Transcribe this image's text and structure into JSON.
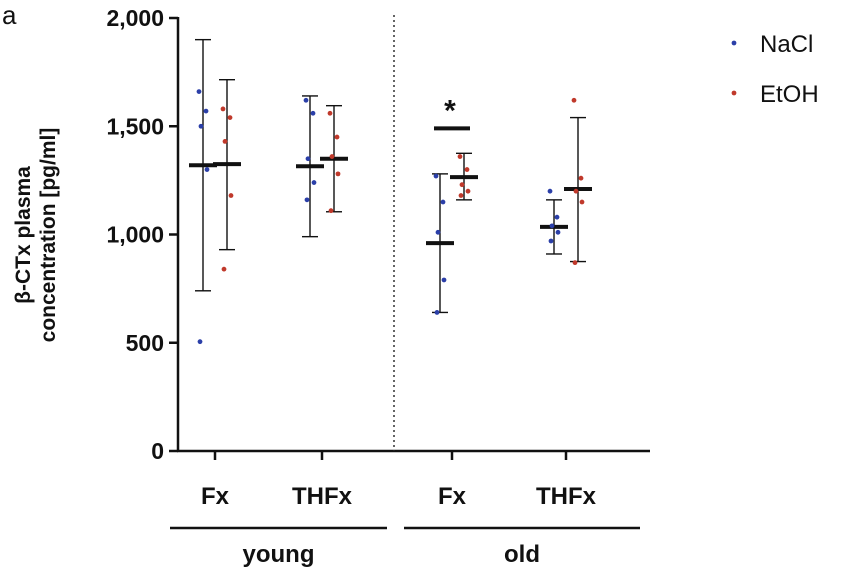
{
  "panel_letter": "a",
  "chart_data": {
    "type": "scatter",
    "ylabel_lines": [
      "β-CTx plasma",
      "concentration [pg/ml]"
    ],
    "ylim": [
      0,
      2000
    ],
    "yticks": [
      0,
      500,
      1000,
      1500,
      2000
    ],
    "ytick_labels": [
      "0",
      "500",
      "1,000",
      "1,500",
      "2,000"
    ],
    "grid": false,
    "legend_position": "top-right",
    "legend": [
      {
        "name": "NaCl",
        "color": "#2b3fa8"
      },
      {
        "name": "EtOH",
        "color": "#c0392b"
      }
    ],
    "categories": [
      "Fx",
      "THFx",
      "Fx",
      "THFx"
    ],
    "groups": [
      {
        "label": "young",
        "categories": [
          0,
          1
        ]
      },
      {
        "label": "old",
        "categories": [
          2,
          3
        ]
      }
    ],
    "series": [
      {
        "name": "NaCl",
        "color": "#2b3fa8",
        "data": [
          {
            "category": 0,
            "mean": 1320,
            "err_low": 740,
            "err_high": 1900,
            "points": [
              1660,
              1570,
              1500,
              1300,
              505
            ]
          },
          {
            "category": 1,
            "mean": 1315,
            "err_low": 990,
            "err_high": 1640,
            "points": [
              1620,
              1560,
              1350,
              1240,
              1160
            ]
          },
          {
            "category": 2,
            "mean": 960,
            "err_low": 640,
            "err_high": 1280,
            "points": [
              1270,
              1150,
              1010,
              790,
              640
            ]
          },
          {
            "category": 3,
            "mean": 1035,
            "err_low": 910,
            "err_high": 1160,
            "points": [
              1200,
              1080,
              1040,
              1010,
              970
            ]
          }
        ]
      },
      {
        "name": "EtOH",
        "color": "#c0392b",
        "data": [
          {
            "category": 0,
            "mean": 1325,
            "err_low": 930,
            "err_high": 1715,
            "points": [
              1580,
              1540,
              1430,
              1180,
              840
            ]
          },
          {
            "category": 1,
            "mean": 1350,
            "err_low": 1105,
            "err_high": 1595,
            "points": [
              1560,
              1450,
              1360,
              1280,
              1110
            ]
          },
          {
            "category": 2,
            "mean": 1265,
            "err_low": 1160,
            "err_high": 1375,
            "points": [
              1360,
              1300,
              1230,
              1200,
              1180
            ]
          },
          {
            "category": 3,
            "mean": 1210,
            "err_low": 875,
            "err_high": 1540,
            "points": [
              1620,
              1260,
              1200,
              1150,
              870
            ]
          }
        ]
      }
    ],
    "annotations": [
      {
        "text": "*",
        "category": 2,
        "y": 1490
      }
    ]
  }
}
